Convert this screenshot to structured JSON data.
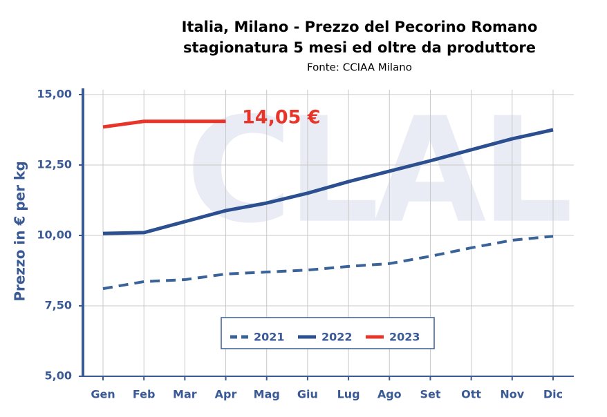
{
  "chart_data": {
    "type": "line",
    "title": "Italia, Milano - Prezzo del Pecorino Romano",
    "subtitle": "stagionatura 5 mesi ed oltre da produttore",
    "source": "Fonte: CCIAA Milano",
    "watermark": "CLAL",
    "y_label": "Prezzo in € per kg",
    "annotation": "14,05 €",
    "categories": [
      "Gen",
      "Feb",
      "Mar",
      "Apr",
      "Mag",
      "Giu",
      "Lug",
      "Ago",
      "Set",
      "Ott",
      "Nov",
      "Dic"
    ],
    "series": [
      {
        "name": "2021",
        "color": "#3a6399",
        "dashed": true,
        "values": [
          8.11,
          8.36,
          8.43,
          8.63,
          8.7,
          8.77,
          8.9,
          9.0,
          9.26,
          9.56,
          9.83,
          9.97
        ]
      },
      {
        "name": "2022",
        "color": "#2b4f8f",
        "dashed": false,
        "values": [
          10.07,
          10.1,
          10.49,
          10.88,
          11.15,
          11.5,
          11.91,
          12.28,
          12.65,
          13.04,
          13.43,
          13.75
        ]
      },
      {
        "name": "2023",
        "color": "#e8352a",
        "dashed": false,
        "values": [
          13.85,
          14.05,
          14.05,
          14.05,
          null,
          null,
          null,
          null,
          null,
          null,
          null,
          null
        ]
      }
    ],
    "ylim": [
      5,
      15
    ],
    "yticks": [
      {
        "value": 5,
        "label": "5,00"
      },
      {
        "value": 7.5,
        "label": "7,50"
      },
      {
        "value": 10,
        "label": "10,00"
      },
      {
        "value": 12.5,
        "label": "12,50"
      },
      {
        "value": 15,
        "label": "15,00"
      }
    ],
    "grid": true
  }
}
